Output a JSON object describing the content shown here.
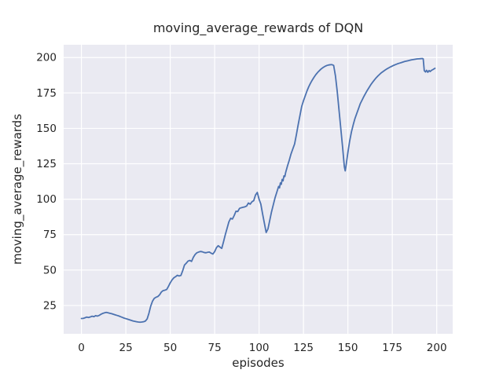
{
  "figure": {
    "title": "moving_average_rewards of DQN",
    "xlabel": "episodes",
    "ylabel": "moving_average_rewards"
  },
  "chart_data": {
    "type": "line",
    "title": "moving_average_rewards of DQN",
    "xlabel": "episodes",
    "ylabel": "moving_average_rewards",
    "x_ticks": [
      0,
      25,
      50,
      75,
      100,
      125,
      150,
      175,
      200
    ],
    "y_ticks": [
      25,
      50,
      75,
      100,
      125,
      150,
      175,
      200
    ],
    "xlim": [
      -10,
      209
    ],
    "ylim": [
      5,
      209
    ],
    "grid": true,
    "legend_position": "none",
    "style": {
      "figure_bg": "#ffffff",
      "plot_bg": "#eaeaf2",
      "grid_color": "#ffffff",
      "line_color": "#4c72b0",
      "text_color": "#262626",
      "line_width": 1.8
    },
    "series": [
      {
        "name": "moving_average_rewards",
        "color": "#4c72b0",
        "points": [
          [
            0,
            15.8
          ],
          [
            1,
            15.9
          ],
          [
            2,
            16.3
          ],
          [
            3,
            16.8
          ],
          [
            4,
            16.5
          ],
          [
            5,
            16.9
          ],
          [
            6,
            17.4
          ],
          [
            7,
            17.1
          ],
          [
            8,
            17.8
          ],
          [
            9,
            17.5
          ],
          [
            10,
            18.0
          ],
          [
            11,
            18.8
          ],
          [
            12,
            19.4
          ],
          [
            13,
            19.8
          ],
          [
            14,
            20.1
          ],
          [
            15,
            19.8
          ],
          [
            16,
            19.5
          ],
          [
            17,
            19.2
          ],
          [
            18,
            18.8
          ],
          [
            19,
            18.4
          ],
          [
            20,
            18.0
          ],
          [
            21,
            17.6
          ],
          [
            22,
            17.1
          ],
          [
            23,
            16.6
          ],
          [
            24,
            16.1
          ],
          [
            25,
            15.7
          ],
          [
            26,
            15.3
          ],
          [
            27,
            14.9
          ],
          [
            28,
            14.5
          ],
          [
            29,
            14.1
          ],
          [
            30,
            13.8
          ],
          [
            31,
            13.5
          ],
          [
            32,
            13.3
          ],
          [
            33,
            13.2
          ],
          [
            34,
            13.3
          ],
          [
            35,
            13.5
          ],
          [
            36,
            14.0
          ],
          [
            37,
            15.5
          ],
          [
            38,
            19.5
          ],
          [
            39,
            24.5
          ],
          [
            40,
            28.0
          ],
          [
            41,
            30.0
          ],
          [
            42,
            30.8
          ],
          [
            43,
            31.3
          ],
          [
            44,
            32.5
          ],
          [
            45,
            34.5
          ],
          [
            46,
            35.5
          ],
          [
            47,
            35.8
          ],
          [
            48,
            36.3
          ],
          [
            49,
            38.5
          ],
          [
            50,
            41.0
          ],
          [
            51,
            43.0
          ],
          [
            52,
            44.5
          ],
          [
            53,
            45.3
          ],
          [
            54,
            46.3
          ],
          [
            55,
            45.8
          ],
          [
            56,
            46.2
          ],
          [
            57,
            49.5
          ],
          [
            58,
            53.5
          ],
          [
            59,
            54.8
          ],
          [
            60,
            56.3
          ],
          [
            61,
            56.8
          ],
          [
            62,
            56.1
          ],
          [
            63,
            59.0
          ],
          [
            64,
            61.0
          ],
          [
            65,
            62.2
          ],
          [
            66,
            62.7
          ],
          [
            67,
            63.1
          ],
          [
            68,
            62.9
          ],
          [
            69,
            62.4
          ],
          [
            70,
            62.2
          ],
          [
            71,
            62.5
          ],
          [
            72,
            62.7
          ],
          [
            73,
            61.9
          ],
          [
            74,
            61.3
          ],
          [
            75,
            63.0
          ],
          [
            76,
            65.8
          ],
          [
            77,
            67.2
          ],
          [
            78,
            66.2
          ],
          [
            79,
            65.3
          ],
          [
            80,
            70.0
          ],
          [
            81,
            75.0
          ],
          [
            82,
            79.5
          ],
          [
            83,
            84.0
          ],
          [
            84,
            86.5
          ],
          [
            85,
            86.0
          ],
          [
            86,
            88.5
          ],
          [
            87,
            91.5
          ],
          [
            88,
            91.3
          ],
          [
            89,
            93.5
          ],
          [
            90,
            94.0
          ],
          [
            91,
            94.3
          ],
          [
            92,
            94.6
          ],
          [
            93,
            95.2
          ],
          [
            94,
            97.3
          ],
          [
            95,
            96.5
          ],
          [
            96,
            98.2
          ],
          [
            97,
            99.0
          ],
          [
            98,
            103.0
          ],
          [
            99,
            104.8
          ],
          [
            100,
            100.0
          ],
          [
            101,
            96.5
          ],
          [
            102,
            89.5
          ],
          [
            103,
            83.0
          ],
          [
            104,
            76.5
          ],
          [
            105,
            79.0
          ],
          [
            106,
            85.0
          ],
          [
            107,
            91.0
          ],
          [
            108,
            96.0
          ],
          [
            109,
            101.0
          ],
          [
            110,
            105.0
          ],
          [
            111,
            109.0
          ],
          [
            111.5,
            108.0
          ],
          [
            112,
            111.5
          ],
          [
            112.5,
            110.5
          ],
          [
            113,
            114.0
          ],
          [
            113.5,
            113.0
          ],
          [
            114,
            116.5
          ],
          [
            114.5,
            116.0
          ],
          [
            115,
            119.0
          ],
          [
            116,
            123.5
          ],
          [
            117,
            127.5
          ],
          [
            118,
            132.0
          ],
          [
            119,
            135.5
          ],
          [
            120,
            139.0
          ],
          [
            121,
            145.5
          ],
          [
            122,
            152.5
          ],
          [
            123,
            159.0
          ],
          [
            124,
            165.5
          ],
          [
            125,
            169.5
          ],
          [
            126,
            173.0
          ],
          [
            127,
            176.5
          ],
          [
            128,
            179.5
          ],
          [
            129,
            182.0
          ],
          [
            130,
            184.2
          ],
          [
            131,
            186.2
          ],
          [
            132,
            188.0
          ],
          [
            133,
            189.5
          ],
          [
            134,
            190.8
          ],
          [
            135,
            192.0
          ],
          [
            136,
            192.9
          ],
          [
            137,
            193.7
          ],
          [
            138,
            194.3
          ],
          [
            139,
            194.7
          ],
          [
            140,
            194.9
          ],
          [
            141,
            195.0
          ],
          [
            142,
            194.4
          ],
          [
            143,
            187.0
          ],
          [
            144,
            176.0
          ],
          [
            145,
            163.0
          ],
          [
            146,
            150.0
          ],
          [
            147,
            137.0
          ],
          [
            148,
            123.0
          ],
          [
            148.5,
            120.0
          ],
          [
            149,
            124.0
          ],
          [
            150,
            133.0
          ],
          [
            151,
            141.0
          ],
          [
            152,
            147.5
          ],
          [
            153,
            152.5
          ],
          [
            154,
            157.0
          ],
          [
            155,
            160.5
          ],
          [
            156,
            164.0
          ],
          [
            157,
            167.5
          ],
          [
            158,
            170.0
          ],
          [
            159,
            172.5
          ],
          [
            160,
            174.8
          ],
          [
            161,
            177.0
          ],
          [
            162,
            179.0
          ],
          [
            163,
            181.0
          ],
          [
            164,
            182.7
          ],
          [
            165,
            184.3
          ],
          [
            166,
            185.8
          ],
          [
            167,
            187.1
          ],
          [
            168,
            188.3
          ],
          [
            169,
            189.4
          ],
          [
            170,
            190.3
          ],
          [
            171,
            191.2
          ],
          [
            172,
            192.0
          ],
          [
            173,
            192.7
          ],
          [
            174,
            193.4
          ],
          [
            175,
            194.0
          ],
          [
            176,
            194.6
          ],
          [
            177,
            195.1
          ],
          [
            178,
            195.6
          ],
          [
            179,
            196.0
          ],
          [
            180,
            196.4
          ],
          [
            181,
            196.8
          ],
          [
            182,
            197.2
          ],
          [
            183,
            197.5
          ],
          [
            184,
            197.8
          ],
          [
            185,
            198.1
          ],
          [
            186,
            198.4
          ],
          [
            187,
            198.6
          ],
          [
            188,
            198.8
          ],
          [
            189,
            199.0
          ],
          [
            190,
            199.1
          ],
          [
            191,
            199.2
          ],
          [
            192,
            199.3
          ],
          [
            192.4,
            199.0
          ],
          [
            193,
            190.7
          ],
          [
            193.7,
            189.8
          ],
          [
            194.3,
            191.0
          ],
          [
            195,
            189.6
          ],
          [
            195.7,
            190.8
          ],
          [
            196.3,
            190.1
          ],
          [
            197,
            190.9
          ],
          [
            198,
            191.6
          ],
          [
            199,
            192.4
          ]
        ]
      }
    ]
  }
}
